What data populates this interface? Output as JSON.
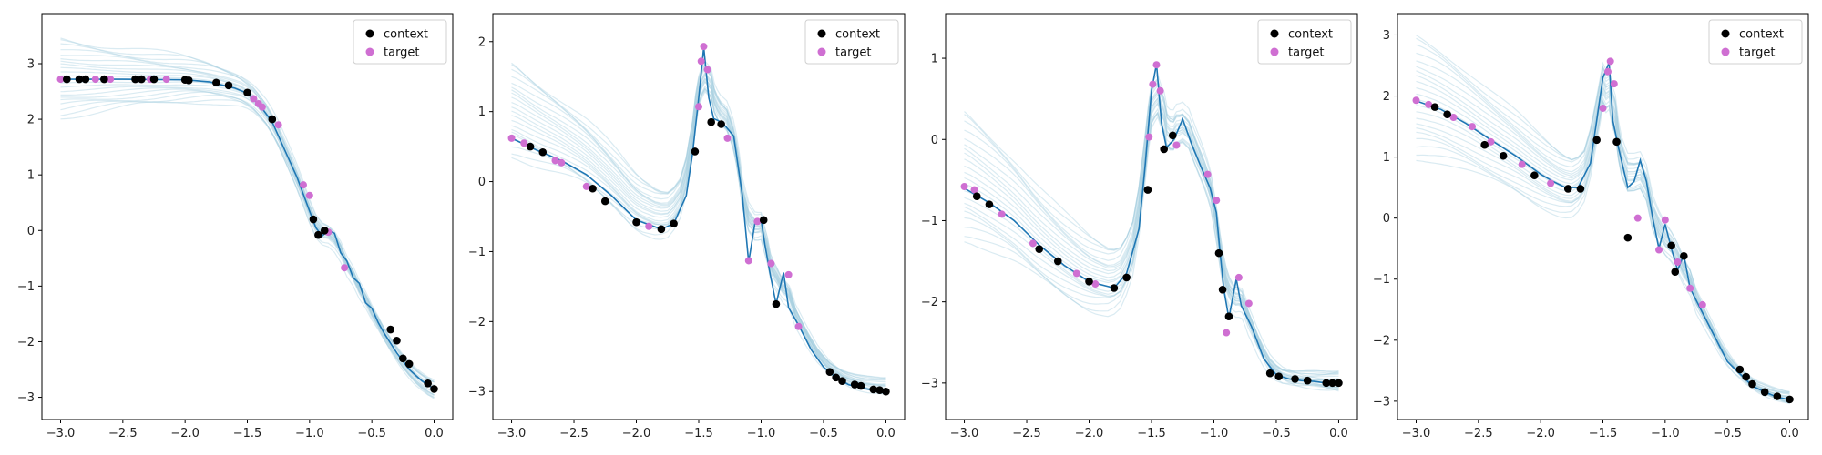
{
  "legend": {
    "context_label": "context",
    "target_label": "target"
  },
  "colors": {
    "context": "#000000",
    "target": "#cf6fd2",
    "mean_line": "#1f77b4",
    "samples": "#a8cfe0"
  },
  "chart_data": [
    {
      "type": "line",
      "xlim": [
        -3.15,
        0.15
      ],
      "ylim": [
        -3.4,
        3.9
      ],
      "xticks": [
        -3.0,
        -2.5,
        -2.0,
        -1.5,
        -1.0,
        -0.5,
        0.0
      ],
      "xtick_labels": [
        "−3.0",
        "−2.5",
        "−2.0",
        "−1.5",
        "−1.0",
        "−0.5",
        "0.0"
      ],
      "yticks": [
        -3,
        -2,
        -1,
        0,
        1,
        2,
        3
      ],
      "ytick_labels": [
        "−3",
        "−2",
        "−1",
        "0",
        "1",
        "2",
        "3"
      ],
      "legend_position": "top-right",
      "mean_curve": [
        [
          -3.0,
          2.72
        ],
        [
          -2.5,
          2.72
        ],
        [
          -2.0,
          2.71
        ],
        [
          -1.8,
          2.67
        ],
        [
          -1.6,
          2.56
        ],
        [
          -1.5,
          2.47
        ],
        [
          -1.4,
          2.25
        ],
        [
          -1.3,
          1.95
        ],
        [
          -1.2,
          1.45
        ],
        [
          -1.1,
          0.95
        ],
        [
          -1.0,
          0.35
        ],
        [
          -0.95,
          0.05
        ],
        [
          -0.9,
          -0.1
        ],
        [
          -0.85,
          0.0
        ],
        [
          -0.8,
          -0.05
        ],
        [
          -0.75,
          -0.4
        ],
        [
          -0.7,
          -0.55
        ],
        [
          -0.65,
          -0.85
        ],
        [
          -0.6,
          -0.95
        ],
        [
          -0.55,
          -1.3
        ],
        [
          -0.5,
          -1.4
        ],
        [
          -0.45,
          -1.65
        ],
        [
          -0.4,
          -1.85
        ],
        [
          -0.3,
          -2.2
        ],
        [
          -0.2,
          -2.5
        ],
        [
          -0.1,
          -2.7
        ],
        [
          0.0,
          -2.85
        ]
      ],
      "context": [
        [
          -2.95,
          2.72
        ],
        [
          -2.85,
          2.72
        ],
        [
          -2.8,
          2.72
        ],
        [
          -2.65,
          2.72
        ],
        [
          -2.4,
          2.72
        ],
        [
          -2.35,
          2.72
        ],
        [
          -2.25,
          2.72
        ],
        [
          -2.0,
          2.71
        ],
        [
          -1.97,
          2.7
        ],
        [
          -1.75,
          2.66
        ],
        [
          -1.65,
          2.61
        ],
        [
          -1.5,
          2.48
        ],
        [
          -1.3,
          2.0
        ],
        [
          -0.97,
          0.2
        ],
        [
          -0.93,
          -0.08
        ],
        [
          -0.88,
          0.0
        ],
        [
          -0.35,
          -1.78
        ],
        [
          -0.3,
          -1.98
        ],
        [
          -0.25,
          -2.3
        ],
        [
          -0.2,
          -2.4
        ],
        [
          -0.05,
          -2.75
        ],
        [
          0.0,
          -2.85
        ]
      ],
      "target": [
        [
          -3.0,
          2.72
        ],
        [
          -2.72,
          2.72
        ],
        [
          -2.6,
          2.72
        ],
        [
          -2.28,
          2.72
        ],
        [
          -2.15,
          2.72
        ],
        [
          -1.45,
          2.37
        ],
        [
          -1.41,
          2.28
        ],
        [
          -1.38,
          2.22
        ],
        [
          -1.25,
          1.9
        ],
        [
          -1.05,
          0.82
        ],
        [
          -1.0,
          0.63
        ],
        [
          -0.85,
          -0.03
        ],
        [
          -0.72,
          -0.67
        ]
      ],
      "sample_fan": {
        "top_left": 3.45,
        "bottom_left": 2.05,
        "end_low": -3.05,
        "end_high": -2.7
      }
    },
    {
      "type": "line",
      "xlim": [
        -3.15,
        0.15
      ],
      "ylim": [
        -3.4,
        2.4
      ],
      "xticks": [
        -3.0,
        -2.5,
        -2.0,
        -1.5,
        -1.0,
        -0.5,
        0.0
      ],
      "xtick_labels": [
        "−3.0",
        "−2.5",
        "−2.0",
        "−1.5",
        "−1.0",
        "−0.5",
        "0.0"
      ],
      "yticks": [
        -3,
        -2,
        -1,
        0,
        1,
        2
      ],
      "ytick_labels": [
        "−3",
        "−2",
        "−1",
        "0",
        "1",
        "2"
      ],
      "legend_position": "top-right",
      "mean_curve": [
        [
          -3.0,
          0.62
        ],
        [
          -2.8,
          0.45
        ],
        [
          -2.6,
          0.3
        ],
        [
          -2.4,
          0.1
        ],
        [
          -2.2,
          -0.2
        ],
        [
          -2.0,
          -0.55
        ],
        [
          -1.8,
          -0.68
        ],
        [
          -1.7,
          -0.6
        ],
        [
          -1.6,
          -0.2
        ],
        [
          -1.55,
          0.4
        ],
        [
          -1.5,
          1.2
        ],
        [
          -1.46,
          1.92
        ],
        [
          -1.42,
          1.2
        ],
        [
          -1.38,
          0.9
        ],
        [
          -1.32,
          0.85
        ],
        [
          -1.28,
          0.78
        ],
        [
          -1.22,
          0.65
        ],
        [
          -1.15,
          -0.2
        ],
        [
          -1.1,
          -1.15
        ],
        [
          -1.05,
          -0.6
        ],
        [
          -1.0,
          -0.55
        ],
        [
          -0.97,
          -0.9
        ],
        [
          -0.93,
          -1.3
        ],
        [
          -0.88,
          -1.75
        ],
        [
          -0.82,
          -1.3
        ],
        [
          -0.78,
          -1.8
        ],
        [
          -0.7,
          -2.05
        ],
        [
          -0.6,
          -2.4
        ],
        [
          -0.5,
          -2.65
        ],
        [
          -0.4,
          -2.8
        ],
        [
          -0.3,
          -2.9
        ],
        [
          -0.2,
          -2.95
        ],
        [
          -0.1,
          -2.98
        ],
        [
          0.0,
          -3.0
        ]
      ],
      "context": [
        [
          -2.85,
          0.5
        ],
        [
          -2.75,
          0.42
        ],
        [
          -2.35,
          -0.1
        ],
        [
          -2.25,
          -0.28
        ],
        [
          -2.0,
          -0.58
        ],
        [
          -1.8,
          -0.68
        ],
        [
          -1.7,
          -0.6
        ],
        [
          -1.53,
          0.43
        ],
        [
          -1.4,
          0.85
        ],
        [
          -1.32,
          0.82
        ],
        [
          -0.98,
          -0.55
        ],
        [
          -0.88,
          -1.75
        ],
        [
          -0.45,
          -2.72
        ],
        [
          -0.4,
          -2.8
        ],
        [
          -0.35,
          -2.85
        ],
        [
          -0.25,
          -2.9
        ],
        [
          -0.2,
          -2.92
        ],
        [
          -0.1,
          -2.97
        ],
        [
          -0.05,
          -2.98
        ],
        [
          0.0,
          -3.0
        ]
      ],
      "target": [
        [
          -3.0,
          0.62
        ],
        [
          -2.9,
          0.55
        ],
        [
          -2.65,
          0.3
        ],
        [
          -2.6,
          0.27
        ],
        [
          -2.4,
          -0.07
        ],
        [
          -1.9,
          -0.64
        ],
        [
          -1.5,
          1.07
        ],
        [
          -1.48,
          1.72
        ],
        [
          -1.46,
          1.93
        ],
        [
          -1.43,
          1.6
        ],
        [
          -1.27,
          0.62
        ],
        [
          -1.1,
          -1.13
        ],
        [
          -1.03,
          -0.57
        ],
        [
          -0.92,
          -1.17
        ],
        [
          -0.78,
          -1.33
        ],
        [
          -0.7,
          -2.07
        ]
      ],
      "sample_fan": {
        "top_left": 1.7,
        "bottom_left": 0.4,
        "end_low": -3.05,
        "end_high": -2.8
      }
    },
    {
      "type": "line",
      "xlim": [
        -3.15,
        0.15
      ],
      "ylim": [
        -3.45,
        1.55
      ],
      "xticks": [
        -3.0,
        -2.5,
        -2.0,
        -1.5,
        -1.0,
        -0.5,
        0.0
      ],
      "xtick_labels": [
        "−3.0",
        "−2.5",
        "−2.0",
        "−1.5",
        "−1.0",
        "−0.5",
        "0.0"
      ],
      "yticks": [
        -3,
        -2,
        -1,
        0,
        1
      ],
      "ytick_labels": [
        "−3",
        "−2",
        "−1",
        "0",
        "1"
      ],
      "legend_position": "top-right",
      "mean_curve": [
        [
          -3.0,
          -0.6
        ],
        [
          -2.8,
          -0.78
        ],
        [
          -2.6,
          -1.0
        ],
        [
          -2.4,
          -1.3
        ],
        [
          -2.2,
          -1.55
        ],
        [
          -2.0,
          -1.75
        ],
        [
          -1.8,
          -1.83
        ],
        [
          -1.7,
          -1.65
        ],
        [
          -1.6,
          -1.1
        ],
        [
          -1.55,
          -0.3
        ],
        [
          -1.5,
          0.6
        ],
        [
          -1.46,
          0.93
        ],
        [
          -1.42,
          0.2
        ],
        [
          -1.38,
          -0.1
        ],
        [
          -1.32,
          0.0
        ],
        [
          -1.25,
          0.25
        ],
        [
          -1.18,
          -0.05
        ],
        [
          -1.1,
          -0.35
        ],
        [
          -1.03,
          -0.6
        ],
        [
          -0.98,
          -0.9
        ],
        [
          -0.95,
          -1.4
        ],
        [
          -0.92,
          -1.85
        ],
        [
          -0.88,
          -2.2
        ],
        [
          -0.82,
          -1.72
        ],
        [
          -0.78,
          -2.05
        ],
        [
          -0.7,
          -2.3
        ],
        [
          -0.6,
          -2.7
        ],
        [
          -0.5,
          -2.9
        ],
        [
          -0.4,
          -2.95
        ],
        [
          -0.3,
          -2.97
        ],
        [
          -0.2,
          -2.98
        ],
        [
          -0.1,
          -3.0
        ],
        [
          0.0,
          -3.0
        ]
      ],
      "context": [
        [
          -2.9,
          -0.7
        ],
        [
          -2.8,
          -0.8
        ],
        [
          -2.4,
          -1.35
        ],
        [
          -2.25,
          -1.5
        ],
        [
          -2.0,
          -1.75
        ],
        [
          -1.8,
          -1.83
        ],
        [
          -1.7,
          -1.7
        ],
        [
          -1.53,
          -0.62
        ],
        [
          -1.4,
          -0.12
        ],
        [
          -1.33,
          0.05
        ],
        [
          -0.96,
          -1.4
        ],
        [
          -0.93,
          -1.85
        ],
        [
          -0.88,
          -2.18
        ],
        [
          -0.55,
          -2.88
        ],
        [
          -0.48,
          -2.92
        ],
        [
          -0.35,
          -2.95
        ],
        [
          -0.25,
          -2.97
        ],
        [
          -0.1,
          -3.0
        ],
        [
          -0.05,
          -3.0
        ],
        [
          0.0,
          -3.0
        ]
      ],
      "target": [
        [
          -3.0,
          -0.58
        ],
        [
          -2.92,
          -0.62
        ],
        [
          -2.7,
          -0.92
        ],
        [
          -2.45,
          -1.28
        ],
        [
          -2.1,
          -1.65
        ],
        [
          -1.95,
          -1.78
        ],
        [
          -1.52,
          0.03
        ],
        [
          -1.49,
          0.68
        ],
        [
          -1.46,
          0.92
        ],
        [
          -1.43,
          0.6
        ],
        [
          -1.3,
          -0.07
        ],
        [
          -1.05,
          -0.43
        ],
        [
          -0.98,
          -0.75
        ],
        [
          -0.9,
          -2.38
        ],
        [
          -0.8,
          -1.7
        ],
        [
          -0.72,
          -2.02
        ]
      ],
      "sample_fan": {
        "top_left": 0.35,
        "bottom_left": -1.2,
        "end_low": -3.1,
        "end_high": -2.85
      }
    },
    {
      "type": "line",
      "xlim": [
        -3.15,
        0.15
      ],
      "ylim": [
        -3.3,
        3.35
      ],
      "xticks": [
        -3.0,
        -2.5,
        -2.0,
        -1.5,
        -1.0,
        -0.5,
        0.0
      ],
      "xtick_labels": [
        "−3.0",
        "−2.5",
        "−2.0",
        "−1.5",
        "−1.0",
        "−0.5",
        "0.0"
      ],
      "yticks": [
        -3,
        -2,
        -1,
        0,
        1,
        2,
        3
      ],
      "ytick_labels": [
        "−3",
        "−2",
        "−1",
        "0",
        "1",
        "2",
        "3"
      ],
      "legend_position": "top-right",
      "mean_curve": [
        [
          -3.0,
          1.92
        ],
        [
          -2.8,
          1.78
        ],
        [
          -2.6,
          1.55
        ],
        [
          -2.4,
          1.28
        ],
        [
          -2.2,
          1.02
        ],
        [
          -2.0,
          0.72
        ],
        [
          -1.9,
          0.6
        ],
        [
          -1.8,
          0.5
        ],
        [
          -1.7,
          0.5
        ],
        [
          -1.6,
          0.9
        ],
        [
          -1.55,
          1.6
        ],
        [
          -1.5,
          2.3
        ],
        [
          -1.45,
          2.55
        ],
        [
          -1.42,
          1.6
        ],
        [
          -1.38,
          1.2
        ],
        [
          -1.3,
          0.5
        ],
        [
          -1.25,
          0.6
        ],
        [
          -1.2,
          0.95
        ],
        [
          -1.15,
          0.6
        ],
        [
          -1.1,
          0.0
        ],
        [
          -1.05,
          -0.5
        ],
        [
          -1.0,
          -0.1
        ],
        [
          -0.95,
          -0.5
        ],
        [
          -0.9,
          -0.85
        ],
        [
          -0.85,
          -0.6
        ],
        [
          -0.8,
          -1.15
        ],
        [
          -0.7,
          -1.55
        ],
        [
          -0.6,
          -1.95
        ],
        [
          -0.5,
          -2.35
        ],
        [
          -0.4,
          -2.55
        ],
        [
          -0.3,
          -2.75
        ],
        [
          -0.2,
          -2.85
        ],
        [
          -0.1,
          -2.93
        ],
        [
          0.0,
          -2.98
        ]
      ],
      "context": [
        [
          -2.85,
          1.82
        ],
        [
          -2.75,
          1.7
        ],
        [
          -2.45,
          1.2
        ],
        [
          -2.3,
          1.02
        ],
        [
          -2.05,
          0.7
        ],
        [
          -1.78,
          0.48
        ],
        [
          -1.68,
          0.48
        ],
        [
          -1.55,
          1.28
        ],
        [
          -1.39,
          1.25
        ],
        [
          -1.3,
          -0.32
        ],
        [
          -0.95,
          -0.45
        ],
        [
          -0.92,
          -0.88
        ],
        [
          -0.85,
          -0.62
        ],
        [
          -0.4,
          -2.48
        ],
        [
          -0.35,
          -2.6
        ],
        [
          -0.3,
          -2.72
        ],
        [
          -0.2,
          -2.85
        ],
        [
          -0.1,
          -2.92
        ],
        [
          0.0,
          -2.97
        ]
      ],
      "target": [
        [
          -3.0,
          1.93
        ],
        [
          -2.9,
          1.86
        ],
        [
          -2.7,
          1.65
        ],
        [
          -2.55,
          1.5
        ],
        [
          -2.4,
          1.25
        ],
        [
          -2.15,
          0.88
        ],
        [
          -1.92,
          0.57
        ],
        [
          -1.5,
          1.8
        ],
        [
          -1.46,
          2.4
        ],
        [
          -1.44,
          2.57
        ],
        [
          -1.41,
          2.2
        ],
        [
          -1.22,
          0.0
        ],
        [
          -1.05,
          -0.52
        ],
        [
          -1.0,
          -0.03
        ],
        [
          -0.9,
          -0.72
        ],
        [
          -0.8,
          -1.15
        ],
        [
          -0.7,
          -1.42
        ]
      ],
      "sample_fan": {
        "top_left": 3.0,
        "bottom_left": 1.0,
        "end_low": -3.05,
        "end_high": -2.85
      }
    }
  ]
}
